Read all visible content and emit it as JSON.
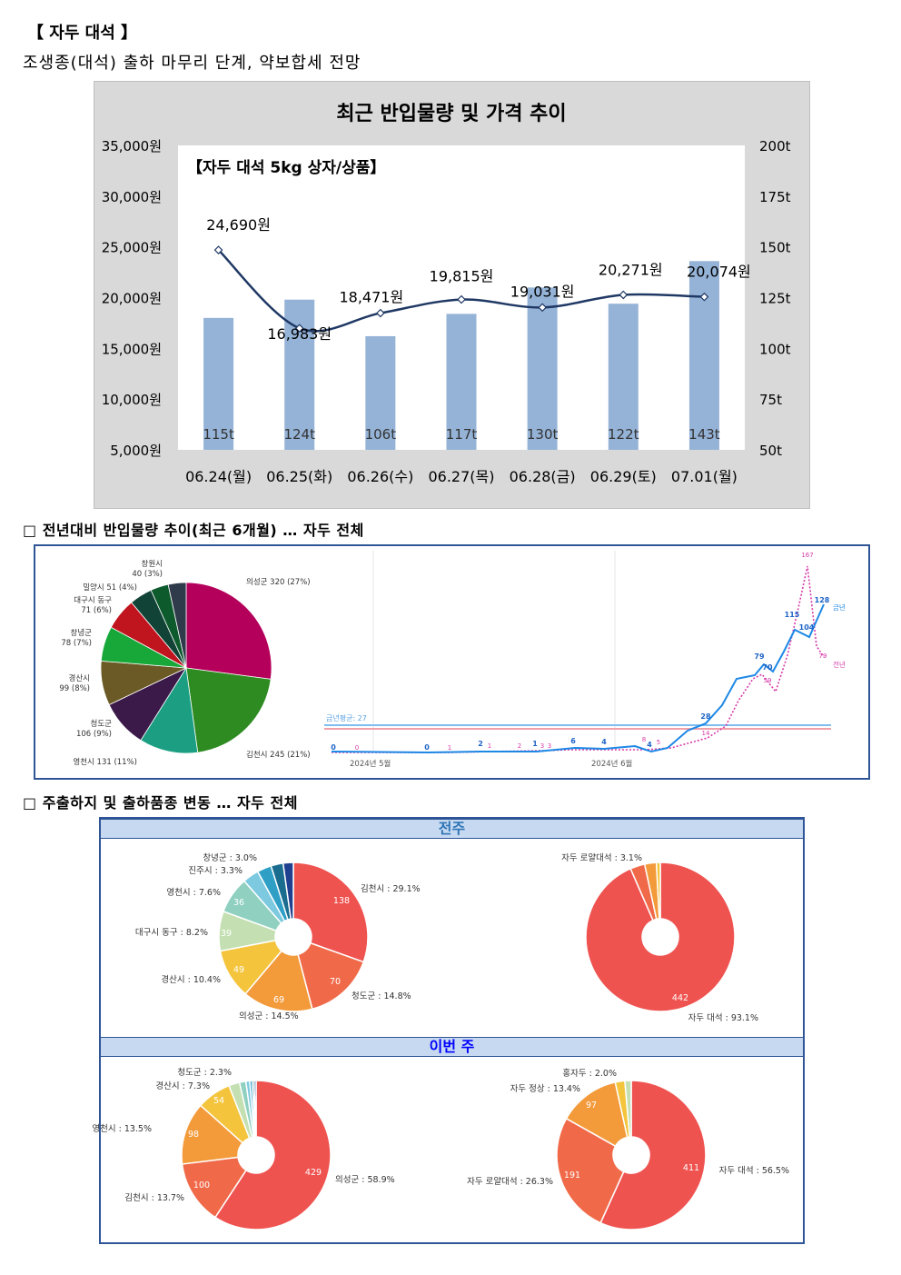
{
  "header": {
    "title": "【 자두 대석 】",
    "subtitle": "조생종(대석) 출하 마무리 단계, 약보합세 전망"
  },
  "section1": {
    "title": "□ 전년대비 반입물량 추이(최근 6개월) … 자두 전체"
  },
  "section2": {
    "title": "□ 주출하지 및 출하품종 변동 … 자두 전체",
    "prev_week_label": "전주",
    "this_week_label": "이번 주"
  },
  "chart_data": [
    {
      "type": "bar",
      "title": "최근 반입물량 및 가격 추이",
      "subtitle": "【자두 대석 5kg 상자/상품】",
      "categories": [
        "06.24(월)",
        "06.25(화)",
        "06.26(수)",
        "06.27(목)",
        "06.28(금)",
        "06.29(토)",
        "07.01(월)"
      ],
      "series": [
        {
          "name": "",
          "kind": "bar",
          "axis": "right",
          "values": [
            115,
            124,
            106,
            117,
            130,
            122,
            143
          ],
          "labels": [
            "115t",
            "124t",
            "106t",
            "117t",
            "130t",
            "122t",
            "143t"
          ]
        },
        {
          "name": "",
          "kind": "line",
          "axis": "left",
          "values": [
            24690,
            16983,
            18471,
            19815,
            19031,
            20271,
            20074
          ],
          "labels": [
            "24,690원",
            "16,983원",
            "18,471원",
            "19,815원",
            "19,031원",
            "20,271원",
            "20,074원"
          ]
        }
      ],
      "ylim_left": [
        5000,
        35000
      ],
      "yticks_left": [
        "5,000원",
        "10,000원",
        "15,000원",
        "20,000원",
        "25,000원",
        "30,000원",
        "35,000원"
      ],
      "ylim_right": [
        50,
        200
      ],
      "yticks_right": [
        "50t",
        "75t",
        "100t",
        "125t",
        "150t",
        "175t",
        "200t"
      ],
      "colors": {
        "bar": "#95b3d7",
        "line": "#1f3864",
        "panel_bg": "#d9d9d9"
      }
    },
    {
      "type": "pie",
      "slices": [
        {
          "label": "의성군 320 (27%)",
          "value": 320,
          "color": "#b5005b"
        },
        {
          "label": "김천시 245 (21%)",
          "value": 245,
          "color": "#2e8b22"
        },
        {
          "label": "영천시 131 (11%)",
          "value": 131,
          "color": "#1b9e82"
        },
        {
          "label": "청도군\n106 (9%)",
          "value": 106,
          "color": "#3b1a4a"
        },
        {
          "label": "경산시\n99 (8%)",
          "value": 99,
          "color": "#6b5a26"
        },
        {
          "label": "창녕군\n78 (7%)",
          "value": 78,
          "color": "#18a83a"
        },
        {
          "label": "대구시 동구\n71 (6%)",
          "value": 71,
          "color": "#c0141e"
        },
        {
          "label": "밀양시 51 (4%)",
          "value": 51,
          "color": "#114437"
        },
        {
          "label": "창원시\n40 (3%)",
          "value": 40,
          "color": "#0d5a2c"
        },
        {
          "label": "",
          "value": 40,
          "color": "#2f3a4a"
        }
      ]
    },
    {
      "type": "line",
      "x_labels": [
        "2024년 5월",
        "2024년 6월"
      ],
      "series": [
        {
          "name": "금년",
          "color": "#1e88e5",
          "labels": [
            "0",
            "0",
            "2",
            "1",
            "6",
            "4",
            "4",
            "28",
            "79",
            "70",
            "115",
            "104",
            "128"
          ]
        },
        {
          "name": "전년",
          "color": "#d63aa8",
          "labels": [
            "0",
            "1",
            "1",
            "2",
            "3",
            "3",
            "8",
            "5",
            "14",
            "59",
            "167",
            "79"
          ]
        }
      ],
      "reference_lines": [
        {
          "label": "금년평균: 27",
          "color": "#7fbdf0"
        },
        {
          "label": "",
          "color": "#f0a0a8"
        }
      ]
    },
    {
      "type": "pie",
      "group": "전주 주출하지",
      "slices": [
        {
          "label": "김천시 : 29.1%",
          "value": 138,
          "value_label": "138",
          "color": "#ef5350"
        },
        {
          "label": "청도군 : 14.8%",
          "value": 70,
          "value_label": "70",
          "color": "#f06a4a"
        },
        {
          "label": "의성군 : 14.5%",
          "value": 69,
          "value_label": "69",
          "color": "#f39a3a"
        },
        {
          "label": "경산시 : 10.4%",
          "value": 49,
          "value_label": "49",
          "color": "#f4c43c"
        },
        {
          "label": "대구시 동구 : 8.2%",
          "value": 39,
          "value_label": "39",
          "color": "#c4e0b2"
        },
        {
          "label": "영천시 : 7.6%",
          "value": 36,
          "value_label": "36",
          "color": "#8fd0c0"
        },
        {
          "label": "진주시 : 3.3%",
          "value": 16,
          "value_label": "",
          "color": "#7cc9e0"
        },
        {
          "label": "창녕군 : 3.0%",
          "value": 14,
          "value_label": "",
          "color": "#2f9fc6"
        },
        {
          "label": "",
          "value": 12,
          "value_label": "",
          "color": "#1b6d8f"
        },
        {
          "label": "",
          "value": 10,
          "value_label": "",
          "color": "#1f3f8f"
        }
      ]
    },
    {
      "type": "pie",
      "group": "전주 출하품종",
      "slices": [
        {
          "label": "자두 대석 : 93.1%",
          "value": 442,
          "value_label": "442",
          "color": "#ef5350"
        },
        {
          "label": "자두 로얄대석 : 3.1%",
          "value": 15,
          "value_label": "",
          "color": "#f06a4a"
        },
        {
          "label": "",
          "value": 12,
          "value_label": "",
          "color": "#f39a3a"
        },
        {
          "label": "",
          "value": 4,
          "value_label": "",
          "color": "#f4c43c"
        }
      ]
    },
    {
      "type": "pie",
      "group": "이번 주 주출하지",
      "slices": [
        {
          "label": "의성군 : 58.9%",
          "value": 429,
          "value_label": "429",
          "color": "#ef5350"
        },
        {
          "label": "김천시 : 13.7%",
          "value": 100,
          "value_label": "100",
          "color": "#f06a4a"
        },
        {
          "label": "영천시 : 13.5%",
          "value": 98,
          "value_label": "98",
          "color": "#f39a3a"
        },
        {
          "label": "경산시 : 7.3%",
          "value": 54,
          "value_label": "54",
          "color": "#f4c43c"
        },
        {
          "label": "청도군 : 2.3%",
          "value": 17,
          "value_label": "",
          "color": "#c4e0b2"
        },
        {
          "label": "",
          "value": 10,
          "value_label": "",
          "color": "#8fd0c0"
        },
        {
          "label": "",
          "value": 6,
          "value_label": "",
          "color": "#7cc9e0"
        },
        {
          "label": "",
          "value": 4,
          "value_label": "",
          "color": "#2f9fc6"
        },
        {
          "label": "",
          "value": 3,
          "value_label": "",
          "color": "#1b6d8f"
        },
        {
          "label": "",
          "value": 3,
          "value_label": "",
          "color": "#1f3f8f"
        }
      ]
    },
    {
      "type": "pie",
      "group": "이번 주 출하품종",
      "slices": [
        {
          "label": "자두 대석 : 56.5%",
          "value": 411,
          "value_label": "411",
          "color": "#ef5350"
        },
        {
          "label": "자두 로얄대석 : 26.3%",
          "value": 191,
          "value_label": "191",
          "color": "#f06a4a"
        },
        {
          "label": "자두 정상 : 13.4%",
          "value": 97,
          "value_label": "97",
          "color": "#f39a3a"
        },
        {
          "label": "홍자두 : 2.0%",
          "value": 15,
          "value_label": "",
          "color": "#f4c43c"
        },
        {
          "label": "",
          "value": 10,
          "value_label": "",
          "color": "#c4e0b2"
        }
      ]
    }
  ]
}
